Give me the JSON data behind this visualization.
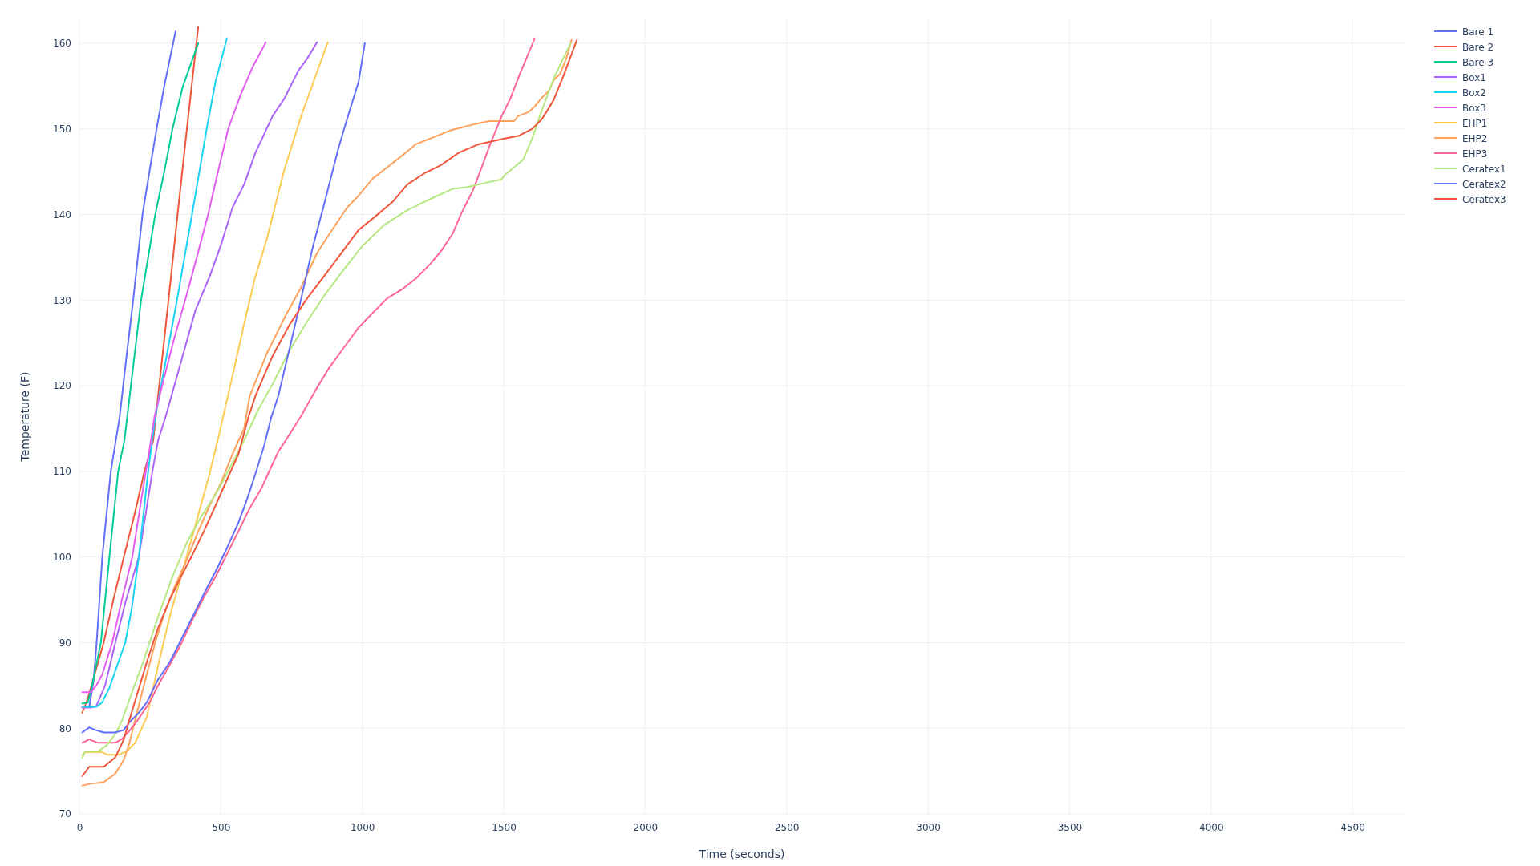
{
  "chart_data": {
    "type": "line",
    "xlabel": "Time (seconds)",
    "ylabel": "Temperature (F)",
    "xlim": [
      0,
      4684
    ],
    "ylim": [
      70,
      162.8
    ],
    "xticks": [
      0,
      500,
      1000,
      1500,
      2000,
      2500,
      3000,
      3500,
      4000,
      4500
    ],
    "yticks": [
      70,
      80,
      90,
      100,
      110,
      120,
      130,
      140,
      150,
      160
    ],
    "grid": true,
    "legend": "top right",
    "marker": "none",
    "line_style": "solid",
    "series": [
      {
        "name": "Bare 1",
        "color": "#636efa",
        "x": [
          10,
          35,
          50,
          61,
          81,
          111,
          142,
          165,
          190,
          223,
          250,
          273,
          300,
          322,
          340
        ],
        "values": [
          82.5,
          82.5,
          85.5,
          90,
          100,
          110,
          116.3,
          123,
          130,
          140,
          145.5,
          150,
          155,
          158.5,
          161.4
        ]
      },
      {
        "name": "Bare 2",
        "color": "#ef553b",
        "x": [
          10,
          30,
          60,
          86,
          120,
          157,
          195,
          230,
          261,
          282,
          315,
          347,
          380,
          420
        ],
        "values": [
          81.8,
          83.5,
          87,
          90,
          95,
          100,
          105,
          110,
          113.6,
          120,
          130,
          140,
          150,
          161.9
        ]
      },
      {
        "name": "Bare 3",
        "color": "#00cc96",
        "x": [
          10,
          30,
          45,
          76,
          106,
          137,
          159,
          218,
          268,
          300,
          329,
          366,
          420
        ],
        "values": [
          82.9,
          83,
          85,
          90,
          100,
          110,
          113.6,
          130,
          140,
          145,
          150,
          155,
          160
        ]
      },
      {
        "name": "Box1",
        "color": "#ab63fa",
        "x": [
          10,
          40,
          60,
          91,
          127,
          165,
          210,
          258,
          278,
          304,
          339,
          410,
          461,
          501,
          541,
          582,
          622,
          683,
          724,
          774,
          805,
          840
        ],
        "values": [
          82.4,
          82.4,
          82.6,
          85,
          90,
          95,
          100,
          110,
          113.6,
          116.3,
          120.4,
          128.8,
          132.8,
          136.5,
          140.8,
          143.5,
          147.2,
          151.5,
          153.5,
          156.8,
          158.2,
          160.1
        ]
      },
      {
        "name": "Box2",
        "color": "#19d3f3",
        "x": [
          10,
          60,
          80,
          106,
          130,
          162,
          185,
          210,
          243,
          268,
          300,
          345,
          398,
          450,
          481,
          521
        ],
        "values": [
          82.5,
          82.5,
          83,
          84.7,
          87,
          90,
          94,
          100,
          110,
          116.3,
          122,
          130,
          140,
          150,
          155.5,
          160.5
        ]
      },
      {
        "name": "Box3",
        "color": "#e45cf2",
        "x": [
          10,
          40,
          60,
          81,
          116,
          150,
          187,
          225,
          250,
          266,
          300,
          335,
          374,
          415,
          455,
          490,
          526,
          570,
          612,
          659
        ],
        "values": [
          84.2,
          84.2,
          85,
          86.3,
          90,
          95,
          100,
          108,
          113,
          116.5,
          121,
          125.5,
          130,
          135,
          140,
          145,
          150,
          154,
          157.2,
          160.1
        ]
      },
      {
        "name": "EHP1",
        "color": "#fecb52",
        "x": [
          10,
          20,
          80,
          100,
          140,
          170,
          197,
          238,
          278,
          319,
          359,
          410,
          460,
          495,
          540,
          582,
          620,
          663,
          724,
          784,
          835,
          878
        ],
        "values": [
          76.8,
          77.2,
          77.2,
          76.9,
          76.9,
          77.4,
          78.3,
          81.3,
          87.3,
          93,
          97.7,
          103.7,
          109.7,
          114.5,
          121,
          127.2,
          132.5,
          137.2,
          145.2,
          151.5,
          156.2,
          160.1
        ]
      },
      {
        "name": "EHP2",
        "color": "#ffa15a",
        "x": [
          10,
          35,
          86,
          127,
          157,
          177,
          207,
          238,
          268,
          299,
          339,
          380,
          420,
          460,
          501,
          541,
          582,
          602,
          663,
          729,
          784,
          840,
          885,
          946,
          987,
          1037,
          1088,
          1138,
          1189,
          1250,
          1310,
          1391,
          1449,
          1536,
          1552,
          1590,
          1612,
          1634,
          1661,
          1677,
          1699,
          1721,
          1740
        ],
        "values": [
          73.3,
          73.5,
          73.7,
          74.7,
          76.3,
          78.3,
          82.3,
          86.3,
          90,
          93.3,
          96.7,
          99.7,
          103,
          106,
          108.7,
          112,
          115,
          118.8,
          123.8,
          128.2,
          131.5,
          135.5,
          137.8,
          140.8,
          142.2,
          144.2,
          145.5,
          146.8,
          148.2,
          149,
          149.8,
          150.5,
          150.9,
          150.9,
          151.5,
          152,
          152.7,
          153.6,
          154.5,
          155.7,
          156.4,
          158.2,
          160.4
        ]
      },
      {
        "name": "EHP3",
        "color": "#ff6692",
        "x": [
          10,
          35,
          66,
          76,
          127,
          152,
          177,
          207,
          248,
          278,
          319,
          359,
          400,
          440,
          481,
          521,
          562,
          602,
          643,
          703,
          729,
          784,
          835,
          885,
          936,
          987,
          1037,
          1088,
          1138,
          1189,
          1240,
          1280,
          1320,
          1351,
          1391,
          1422,
          1452,
          1493,
          1523,
          1558,
          1609
        ],
        "values": [
          78.3,
          78.7,
          78.3,
          78.3,
          78.3,
          78.8,
          79.7,
          81,
          83,
          85,
          87.4,
          89.8,
          92.7,
          95.3,
          97.7,
          100.3,
          103,
          105.7,
          108,
          112.3,
          113.6,
          116.5,
          119.5,
          122.2,
          124.5,
          126.8,
          128.5,
          130.2,
          131.2,
          132.5,
          134.2,
          135.8,
          137.8,
          140.2,
          142.8,
          145.5,
          148.2,
          151.5,
          153.5,
          156.5,
          160.5
        ]
      },
      {
        "name": "Ceratex1",
        "color": "#b6e880",
        "x": [
          10,
          20,
          66,
          96,
          127,
          152,
          187,
          228,
          278,
          329,
          380,
          430,
          481,
          521,
          582,
          632,
          683,
          744,
          805,
          865,
          926,
          997,
          1078,
          1159,
          1240,
          1320,
          1373,
          1449,
          1492,
          1503,
          1536,
          1569,
          1601,
          1634,
          1677,
          1710,
          1737
        ],
        "values": [
          76.5,
          77.3,
          77.3,
          78,
          79.3,
          81,
          84.3,
          88,
          93,
          97.7,
          101.7,
          104.7,
          107.3,
          109.7,
          113.6,
          117.2,
          120.2,
          124.2,
          127.5,
          130.5,
          133.2,
          136.2,
          138.8,
          140.5,
          141.8,
          143,
          143.2,
          143.8,
          144.1,
          144.6,
          145.5,
          146.4,
          148.9,
          152.1,
          155.9,
          158.2,
          160
        ]
      },
      {
        "name": "Ceratex2",
        "color": "#636efa",
        "x": [
          10,
          35,
          56,
          86,
          127,
          157,
          177,
          207,
          238,
          278,
          319,
          359,
          400,
          440,
          481,
          521,
          562,
          592,
          622,
          653,
          678,
          703,
          744,
          784,
          825,
          865,
          916,
          956,
          987,
          1009
        ],
        "values": [
          79.5,
          80.1,
          79.8,
          79.5,
          79.5,
          79.8,
          80.7,
          81.7,
          83,
          85.7,
          87.7,
          90.3,
          93,
          95.7,
          98.3,
          101,
          104,
          106.7,
          109.7,
          113,
          116.3,
          118.8,
          124.5,
          130.2,
          136.2,
          141.2,
          147.8,
          152.2,
          155.5,
          160
        ]
      },
      {
        "name": "Ceratex3",
        "color": "#ef553b",
        "x": [
          10,
          35,
          86,
          127,
          157,
          177,
          207,
          238,
          278,
          319,
          359,
          400,
          440,
          481,
          521,
          562,
          597,
          622,
          683,
          744,
          805,
          865,
          926,
          987,
          1047,
          1108,
          1159,
          1219,
          1280,
          1340,
          1411,
          1493,
          1554,
          1601,
          1634,
          1661,
          1677,
          1710,
          1759
        ],
        "values": [
          74.4,
          75.5,
          75.5,
          76.6,
          78.7,
          81,
          84.3,
          87.7,
          91.7,
          95,
          97.7,
          100.3,
          103,
          106,
          109,
          112,
          116.3,
          118.8,
          123.5,
          127.2,
          130.2,
          132.8,
          135.5,
          138.2,
          139.8,
          141.5,
          143.5,
          144.8,
          145.8,
          147.2,
          148.2,
          148.8,
          149.2,
          150,
          151.1,
          152.5,
          153.4,
          156.1,
          160.4
        ]
      }
    ]
  }
}
